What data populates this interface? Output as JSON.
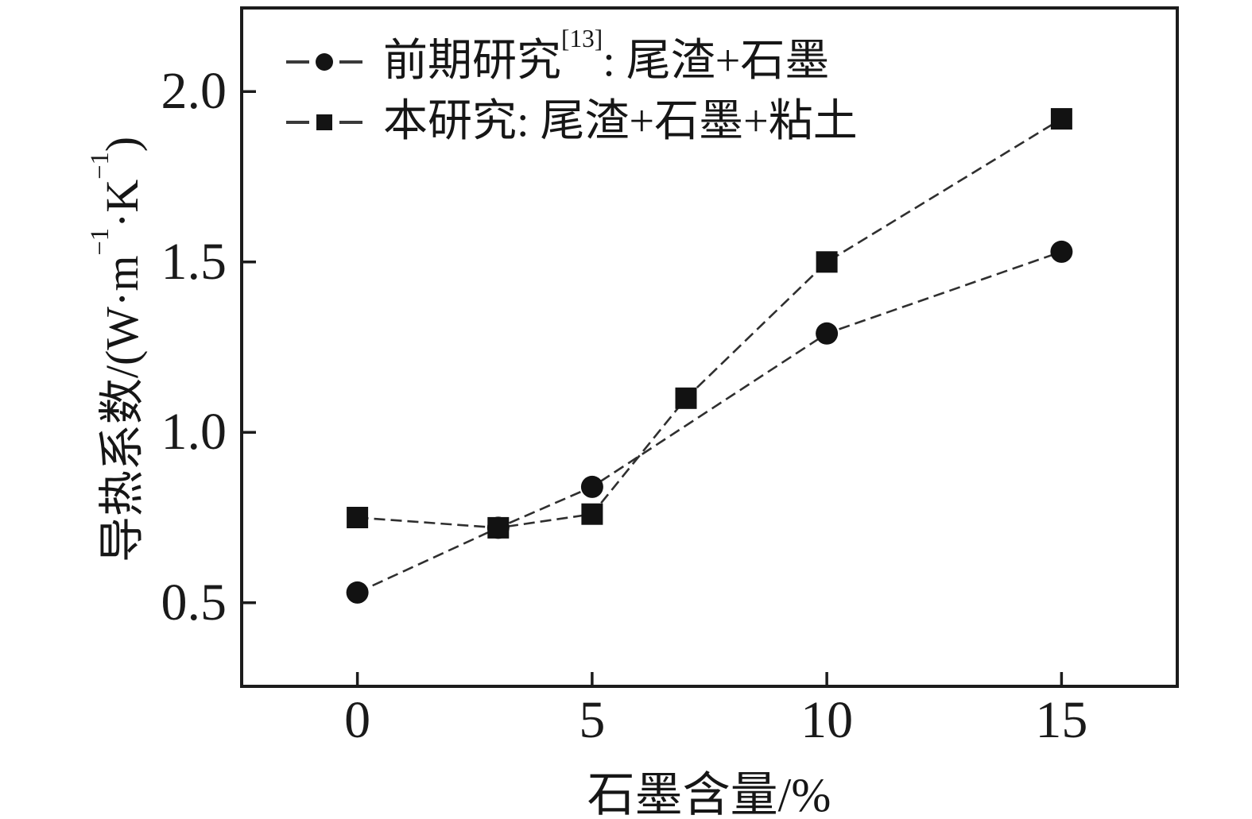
{
  "chart_data": {
    "type": "line",
    "title": "",
    "xlabel": "石墨含量/%",
    "ylabel": "导热系数/(W·m⁻¹·K⁻¹)",
    "ylabel_parts": {
      "pre": "导热系数/(W·m",
      "sup1": "−1",
      "mid": "·K",
      "sup2": "−1",
      "post": ")"
    },
    "xlim": [
      -2.5,
      17.5
    ],
    "ylim": [
      0.25,
      2.25
    ],
    "xtick_values": [
      0,
      5,
      10,
      15
    ],
    "xtick_labels": [
      "0",
      "5",
      "10",
      "15"
    ],
    "ytick_values": [
      0.5,
      1.0,
      1.5,
      2.0
    ],
    "ytick_labels": [
      "0.5",
      "1.0",
      "1.5",
      "2.0"
    ],
    "grid": false,
    "legend_position": "top-left-inside",
    "frame": "full-box",
    "axis_color": "#1c1c1c",
    "line_color": "#2f2f2f",
    "marker_color": "#121212",
    "series": [
      {
        "name": "前期研究[13]: 尾渣+石墨",
        "marker": "circle",
        "x": [
          0,
          3,
          5,
          10,
          15
        ],
        "y": [
          0.53,
          0.72,
          0.84,
          1.29,
          1.53
        ]
      },
      {
        "name": "本研究: 尾渣+石墨+粘土",
        "marker": "square",
        "x": [
          0,
          3,
          5,
          7,
          10,
          15
        ],
        "y": [
          0.75,
          0.72,
          0.76,
          1.1,
          1.5,
          1.92
        ]
      }
    ]
  },
  "legend": {
    "items": [
      {
        "pre": "前期研究",
        "sup": "[13]",
        "post": ": 尾渣+石墨",
        "marker": "circle"
      },
      {
        "pre": "本研究: 尾渣+石墨+粘土",
        "sup": "",
        "post": "",
        "marker": "square"
      }
    ]
  }
}
